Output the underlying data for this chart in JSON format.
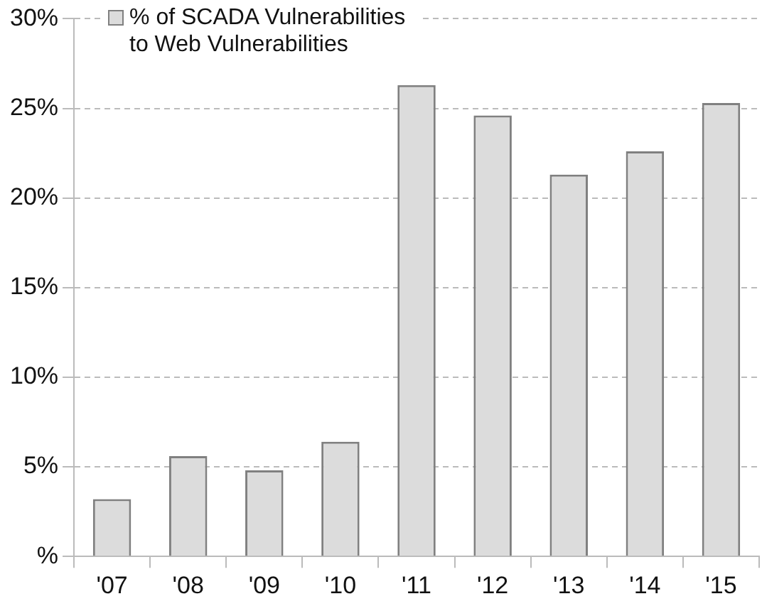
{
  "chart_data": {
    "type": "bar",
    "categories": [
      "'07",
      "'08",
      "'09",
      "'10",
      "'11",
      "'12",
      "'13",
      "'14",
      "'15"
    ],
    "series": [
      {
        "name": "% of SCADA Vulnerabilities to Web Vulnerabilities",
        "color": "#dcdcdc",
        "values": [
          3.2,
          5.6,
          4.8,
          6.4,
          26.3,
          24.6,
          21.3,
          22.6,
          25.3
        ]
      }
    ],
    "ylim": [
      0,
      30
    ],
    "yticks": [
      {
        "value": 0,
        "label": "%"
      },
      {
        "value": 5,
        "label": "5%"
      },
      {
        "value": 10,
        "label": "10%"
      },
      {
        "value": 15,
        "label": "15%"
      },
      {
        "value": 20,
        "label": "20%"
      },
      {
        "value": 25,
        "label": "25%"
      },
      {
        "value": 30,
        "label": "30%"
      }
    ],
    "grid": "y",
    "legend": "top left"
  }
}
